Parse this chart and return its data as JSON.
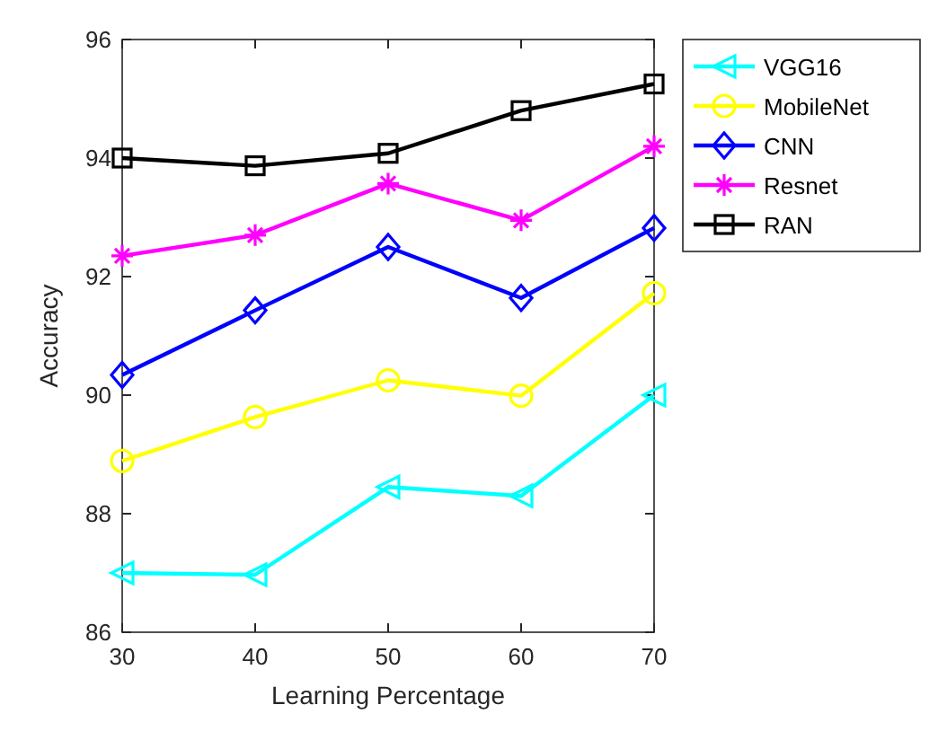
{
  "chart_data": {
    "type": "line",
    "xlabel": "Learning Percentage",
    "ylabel": "Accuracy",
    "x": [
      30,
      40,
      50,
      60,
      70
    ],
    "xlim": [
      30,
      70
    ],
    "xticks": [
      30,
      40,
      50,
      60,
      70
    ],
    "ylim": [
      86,
      96
    ],
    "yticks": [
      86,
      88,
      90,
      92,
      94,
      96
    ],
    "grid": false,
    "legend": "top right",
    "line_style": "solid",
    "series": [
      {
        "name": "VGG16",
        "color": "#00ffff",
        "marker": "triangle",
        "values": [
          87.0,
          86.97,
          88.45,
          88.3,
          90.0
        ]
      },
      {
        "name": "MobileNet",
        "color": "#ffff00",
        "marker": "circle",
        "values": [
          88.89,
          89.63,
          90.25,
          89.99,
          91.72
        ]
      },
      {
        "name": "CNN",
        "color": "#0000ff",
        "marker": "diamond",
        "values": [
          90.34,
          91.43,
          92.5,
          91.64,
          92.82
        ]
      },
      {
        "name": "Resnet",
        "color": "#ff00ff",
        "marker": "cross",
        "values": [
          92.35,
          92.7,
          93.57,
          92.95,
          94.2
        ]
      },
      {
        "name": "RAN",
        "color": "#000000",
        "marker": "square",
        "values": [
          94.0,
          93.87,
          94.08,
          94.8,
          95.25
        ]
      }
    ]
  }
}
